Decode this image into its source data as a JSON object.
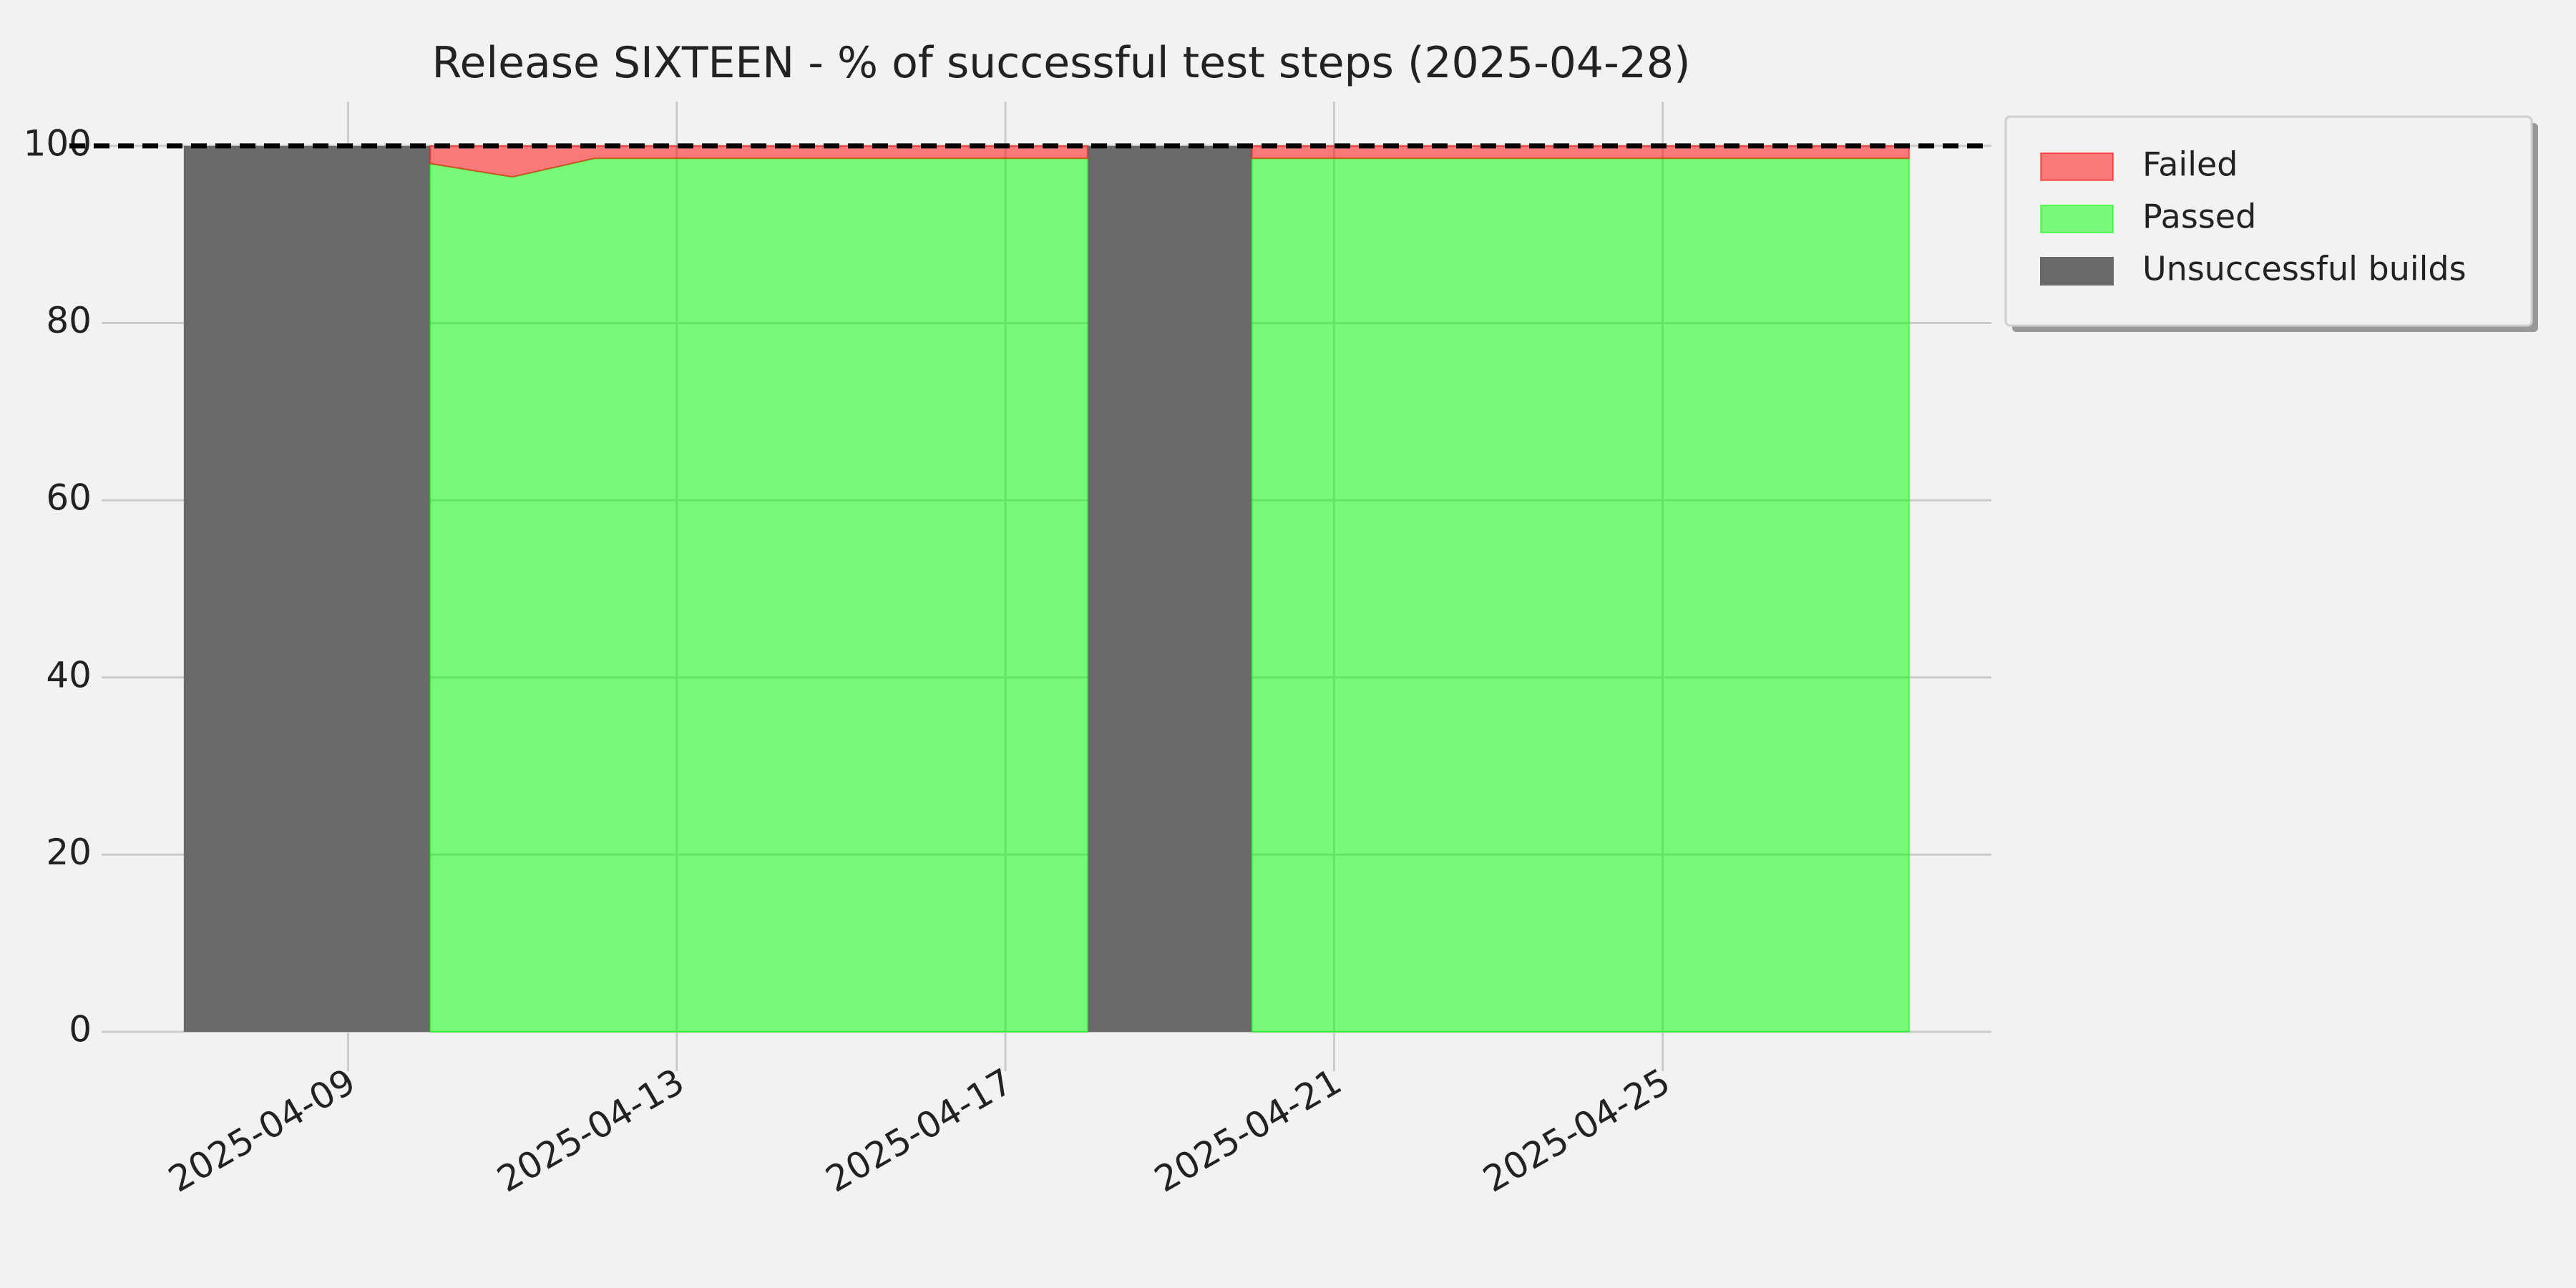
{
  "chart_data": {
    "type": "stacked_area",
    "title": "Release SIXTEEN - % of successful test steps (2025-04-28)",
    "x": [
      "2025-04-10",
      "2025-04-11",
      "2025-04-12",
      "2025-04-13",
      "2025-04-14",
      "2025-04-15",
      "2025-04-16",
      "2025-04-17",
      "2025-04-18",
      "2025-04-19",
      "2025-04-20",
      "2025-04-21",
      "2025-04-22",
      "2025-04-23",
      "2025-04-24",
      "2025-04-25",
      "2025-04-26",
      "2025-04-27",
      "2025-04-28"
    ],
    "series": [
      {
        "name": "Failed",
        "color": "#ff0000",
        "alpha": 0.5,
        "values": [
          2,
          3.5,
          1.4,
          1.4,
          1.4,
          1.4,
          1.4,
          1.4,
          1.4,
          null,
          1.4,
          1.4,
          1.4,
          1.4,
          1.4,
          1.4,
          1.4,
          1.4,
          1.4
        ]
      },
      {
        "name": "Passed",
        "color": "#00ff00",
        "alpha": 0.5,
        "values": [
          98,
          96.5,
          98.6,
          98.6,
          98.6,
          98.6,
          98.6,
          98.6,
          98.6,
          null,
          98.6,
          98.6,
          98.6,
          98.6,
          98.6,
          98.6,
          98.6,
          98.6,
          98.6
        ]
      }
    ],
    "unsuccessful_builds": {
      "name": "Unsuccessful builds",
      "color": "#696969",
      "value": 100,
      "spans": [
        [
          "2025-04-07",
          "2025-04-10"
        ],
        [
          "2025-04-18",
          "2025-04-20"
        ]
      ]
    },
    "threshold": 100,
    "xlim": [
      "2025-04-06",
      "2025-04-29"
    ],
    "xticks": [
      "2025-04-09",
      "2025-04-13",
      "2025-04-17",
      "2025-04-21",
      "2025-04-25"
    ],
    "ylim": [
      0,
      105
    ],
    "yticks": [
      0,
      20,
      40,
      60,
      80,
      100
    ],
    "grid": true,
    "legend": "upper right outside"
  }
}
